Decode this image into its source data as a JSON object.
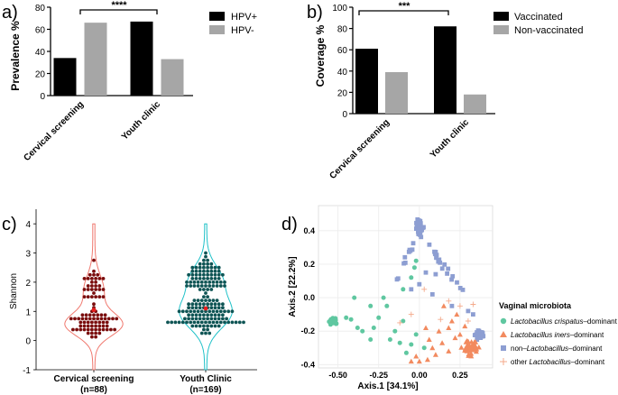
{
  "colors": {
    "black": "#000000",
    "gray": "#a6a6a6",
    "violin_red": "#f0796f",
    "violin_teal": "#1fc1c8",
    "dot_red": "#7a0d0d",
    "dot_teal": "#0e5454",
    "crispatus": "#5fc7a0",
    "iners": "#f28a5f",
    "non_lacto": "#8d9ed2",
    "other": "#f4a98a"
  },
  "chart_data": [
    {
      "panel": "a)",
      "type": "bar",
      "ylabel": "Prevalence %",
      "ylim": [
        0,
        80
      ],
      "yticks": [
        "0",
        "20",
        "40",
        "60",
        "80"
      ],
      "categories": [
        "Cervical screening",
        "Youth clinic"
      ],
      "series": [
        {
          "name": "HPV+",
          "values": [
            34,
            67
          ]
        },
        {
          "name": "HPV-",
          "values": [
            66,
            33
          ]
        }
      ],
      "annotation": "****",
      "legend": "top-right"
    },
    {
      "panel": "b)",
      "type": "bar",
      "ylabel": "Coverage %",
      "ylim": [
        0,
        100
      ],
      "yticks": [
        "0",
        "20",
        "40",
        "60",
        "80",
        "100"
      ],
      "categories": [
        "Cervical screening",
        "Youth clinic"
      ],
      "series": [
        {
          "name": "Vaccinated",
          "values": [
            61,
            82
          ]
        },
        {
          "name": "Non-vaccinated",
          "values": [
            39,
            18
          ]
        }
      ],
      "annotation": "***",
      "legend": "top-right"
    },
    {
      "panel": "c)",
      "type": "violin",
      "ylabel": "Shannon",
      "ylim": [
        -1,
        4.5
      ],
      "yticks": [
        "-1",
        "0",
        "1",
        "2",
        "3",
        "4"
      ],
      "groups": [
        {
          "label": "Cervical screening",
          "n": "(n=88)",
          "range": [
            0.0,
            3.3
          ],
          "median": 1.05
        },
        {
          "label": "Youth Clinic",
          "n": "(n=169)",
          "range": [
            0.05,
            3.55
          ],
          "median": 1.1
        }
      ]
    },
    {
      "panel": "d)",
      "type": "scatter",
      "xlabel": "Axis.1   [34.1%]",
      "ylabel": "Axis.2   [22.2%]",
      "xlim": [
        -0.62,
        0.45
      ],
      "ylim": [
        -0.42,
        0.55
      ],
      "xticks": [
        "-0.50",
        "-0.25",
        "0.00",
        "0.25"
      ],
      "yticks": [
        "-0.4",
        "-0.2",
        "0.0",
        "0.2",
        "0.4"
      ],
      "legend_title": "Vaginal microbiota",
      "legend": [
        {
          "italic": "Lactobacillus crispatus",
          "rest": "–dominant"
        },
        {
          "italic": "Lactobacillus iners",
          "rest": "–dominant"
        },
        {
          "prefix": "non–",
          "italic": "Lactobacillus",
          "rest": "–dominant"
        },
        {
          "prefix": "other ",
          "italic": "Lactobacillus",
          "rest": "–dominant"
        }
      ]
    }
  ]
}
